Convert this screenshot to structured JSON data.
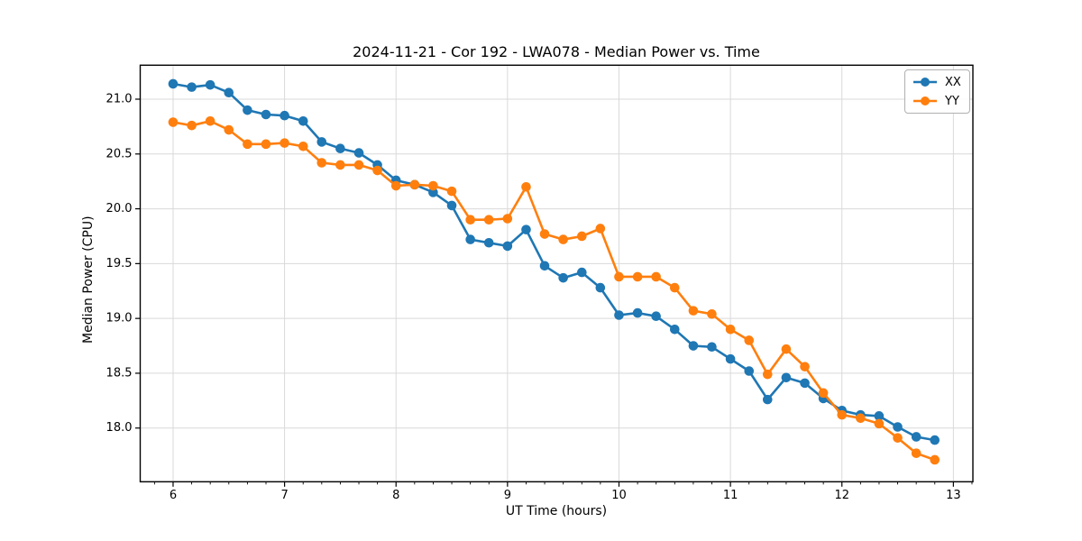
{
  "figure": {
    "title": "2024-11-21 - Cor 192 - LWA078 - Median Power vs. Time",
    "xlabel": "UT Time (hours)",
    "ylabel": "Median Power (CPU)",
    "background": "#ffffff",
    "axes_color": "#000000",
    "grid_color": "#d9d9d9"
  },
  "chart_data": {
    "type": "line",
    "title": "2024-11-21 - Cor 192 - LWA078 - Median Power vs. Time",
    "xlabel": "UT Time (hours)",
    "ylabel": "Median Power (CPU)",
    "xlim": [
      5.705,
      13.175
    ],
    "ylim": [
      17.51,
      21.31
    ],
    "xticks": [
      6,
      7,
      8,
      9,
      10,
      11,
      12,
      13
    ],
    "xtick_labels": [
      "6",
      "7",
      "8",
      "9",
      "10",
      "11",
      "12",
      "13"
    ],
    "yticks": [
      18.0,
      18.5,
      19.0,
      19.5,
      20.0,
      20.5,
      21.0
    ],
    "ytick_labels": [
      "18.0",
      "18.5",
      "19.0",
      "19.5",
      "20.0",
      "20.5",
      "21.0"
    ],
    "minor_xtick_step": 0.166667,
    "grid": true,
    "legend": {
      "position": "upper right",
      "items": [
        "XX",
        "YY"
      ]
    },
    "x": [
      6.0,
      6.167,
      6.333,
      6.5,
      6.667,
      6.833,
      7.0,
      7.167,
      7.333,
      7.5,
      7.667,
      7.833,
      8.0,
      8.167,
      8.333,
      8.5,
      8.667,
      8.833,
      9.0,
      9.167,
      9.333,
      9.5,
      9.667,
      9.833,
      10.0,
      10.167,
      10.333,
      10.5,
      10.667,
      10.833,
      11.0,
      11.167,
      11.333,
      11.5,
      11.667,
      11.833,
      12.0,
      12.167,
      12.333,
      12.5,
      12.667,
      12.833
    ],
    "series": [
      {
        "name": "XX",
        "color": "#1f77b4",
        "marker": "circle",
        "values": [
          21.14,
          21.11,
          21.13,
          21.06,
          20.9,
          20.86,
          20.85,
          20.8,
          20.61,
          20.55,
          20.51,
          20.4,
          20.26,
          20.22,
          20.15,
          20.03,
          19.72,
          19.69,
          19.66,
          19.81,
          19.48,
          19.37,
          19.42,
          19.28,
          19.03,
          19.05,
          19.02,
          18.9,
          18.75,
          18.74,
          18.63,
          18.52,
          18.26,
          18.46,
          18.41,
          18.27,
          18.16,
          18.12,
          18.11,
          18.01,
          17.92,
          17.89
        ]
      },
      {
        "name": "YY",
        "color": "#ff7f0e",
        "marker": "circle",
        "values": [
          20.79,
          20.76,
          20.8,
          20.72,
          20.59,
          20.59,
          20.6,
          20.57,
          20.42,
          20.4,
          20.4,
          20.35,
          20.21,
          20.22,
          20.21,
          20.16,
          19.9,
          19.9,
          19.91,
          20.2,
          19.77,
          19.72,
          19.75,
          19.82,
          19.38,
          19.38,
          19.38,
          19.28,
          19.07,
          19.04,
          18.9,
          18.8,
          18.49,
          18.72,
          18.56,
          18.32,
          18.12,
          18.09,
          18.04,
          17.91,
          17.77,
          17.71
        ]
      }
    ]
  }
}
